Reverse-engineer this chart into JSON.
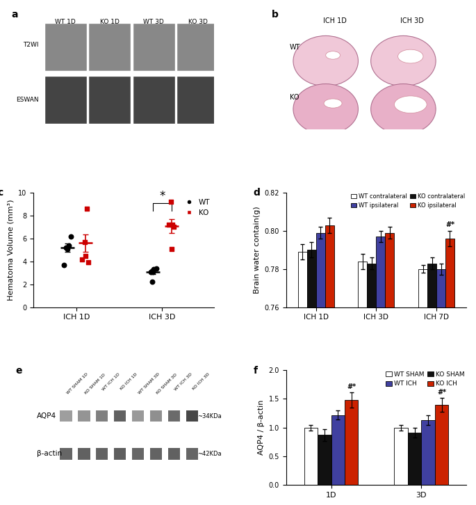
{
  "panel_c": {
    "ylabel": "Hematoma Volume (mm³)",
    "ylim": [
      0,
      10
    ],
    "yticks": [
      0,
      2,
      4,
      6,
      8,
      10
    ],
    "groups": [
      "ICH 1D",
      "ICH 3D"
    ],
    "wt_1d": [
      5.2,
      5.4,
      6.2,
      3.7,
      5.1
    ],
    "ko_1d": [
      5.7,
      4.2,
      3.9,
      4.5,
      8.6
    ],
    "wt_3d": [
      3.1,
      3.3,
      3.4,
      2.2,
      3.1
    ],
    "ko_3d": [
      9.2,
      7.2,
      7.0,
      5.1,
      7.2
    ],
    "wt_mean_1d": 5.2,
    "ko_mean_1d": 5.6,
    "wt_mean_3d": 3.1,
    "ko_mean_3d": 7.1,
    "wt_sem_1d": 0.35,
    "ko_sem_1d": 0.75,
    "wt_sem_3d": 0.22,
    "ko_sem_3d": 0.62,
    "wt_color": "#000000",
    "ko_color": "#cc0000"
  },
  "panel_d": {
    "ylabel": "Brain water contain(g)",
    "ylim": [
      0.76,
      0.82
    ],
    "yticks": [
      0.76,
      0.78,
      0.8,
      0.82
    ],
    "groups": [
      "ICH 1D",
      "ICH 3D",
      "ICH 7D"
    ],
    "legend_labels": [
      "WT contralateral",
      "KO contralateral",
      "WT ipsilateral",
      "KO ipsilateral"
    ],
    "colors": [
      "#ffffff",
      "#111111",
      "#4040a0",
      "#cc2200"
    ],
    "bar_edgecolor": "#000000",
    "data": {
      "ICH 1D": [
        0.789,
        0.79,
        0.799,
        0.803
      ],
      "ICH 3D": [
        0.784,
        0.783,
        0.797,
        0.799
      ],
      "ICH 7D": [
        0.78,
        0.783,
        0.78,
        0.796
      ]
    },
    "errors": {
      "ICH 1D": [
        0.004,
        0.004,
        0.003,
        0.004
      ],
      "ICH 3D": [
        0.004,
        0.003,
        0.003,
        0.003
      ],
      "ICH 7D": [
        0.002,
        0.003,
        0.003,
        0.004
      ]
    },
    "sig_bar_idx": 3,
    "sig_text": "#*"
  },
  "panel_f": {
    "ylabel": "AQP4 / β-actin",
    "ylim": [
      0,
      2.0
    ],
    "yticks": [
      0.0,
      0.5,
      1.0,
      1.5,
      2.0
    ],
    "groups": [
      "1D",
      "3D"
    ],
    "legend_labels": [
      "WT SHAM",
      "KO SHAM",
      "WT ICH",
      "KO ICH"
    ],
    "colors": [
      "#ffffff",
      "#111111",
      "#4040a0",
      "#cc2200"
    ],
    "data": {
      "1D": [
        1.0,
        0.87,
        1.22,
        1.48
      ],
      "3D": [
        1.0,
        0.91,
        1.13,
        1.4
      ]
    },
    "errors": {
      "1D": [
        0.05,
        0.1,
        0.08,
        0.13
      ],
      "3D": [
        0.05,
        0.08,
        0.09,
        0.12
      ]
    },
    "sig_bar_idx": 3,
    "sig_text": "#*"
  },
  "panel_e": {
    "lane_labels": [
      "WT SHAM 1D",
      "KO SHAM 1D",
      "WT ICH 1D",
      "KO ICH 1D",
      "WT SHAM 3D",
      "KO SHAM 3D",
      "WT ICH 3D",
      "KO ICH 3D"
    ],
    "aqp4_intensities": [
      0.38,
      0.42,
      0.5,
      0.62,
      0.4,
      0.44,
      0.58,
      0.72
    ],
    "actin_intensities": [
      0.6,
      0.62,
      0.61,
      0.63,
      0.6,
      0.61,
      0.62,
      0.6
    ],
    "aqp4_label": "AQP4",
    "actin_label": "β-actin",
    "aqp4_kda": "~34KDa",
    "actin_kda": "~42KDa"
  }
}
